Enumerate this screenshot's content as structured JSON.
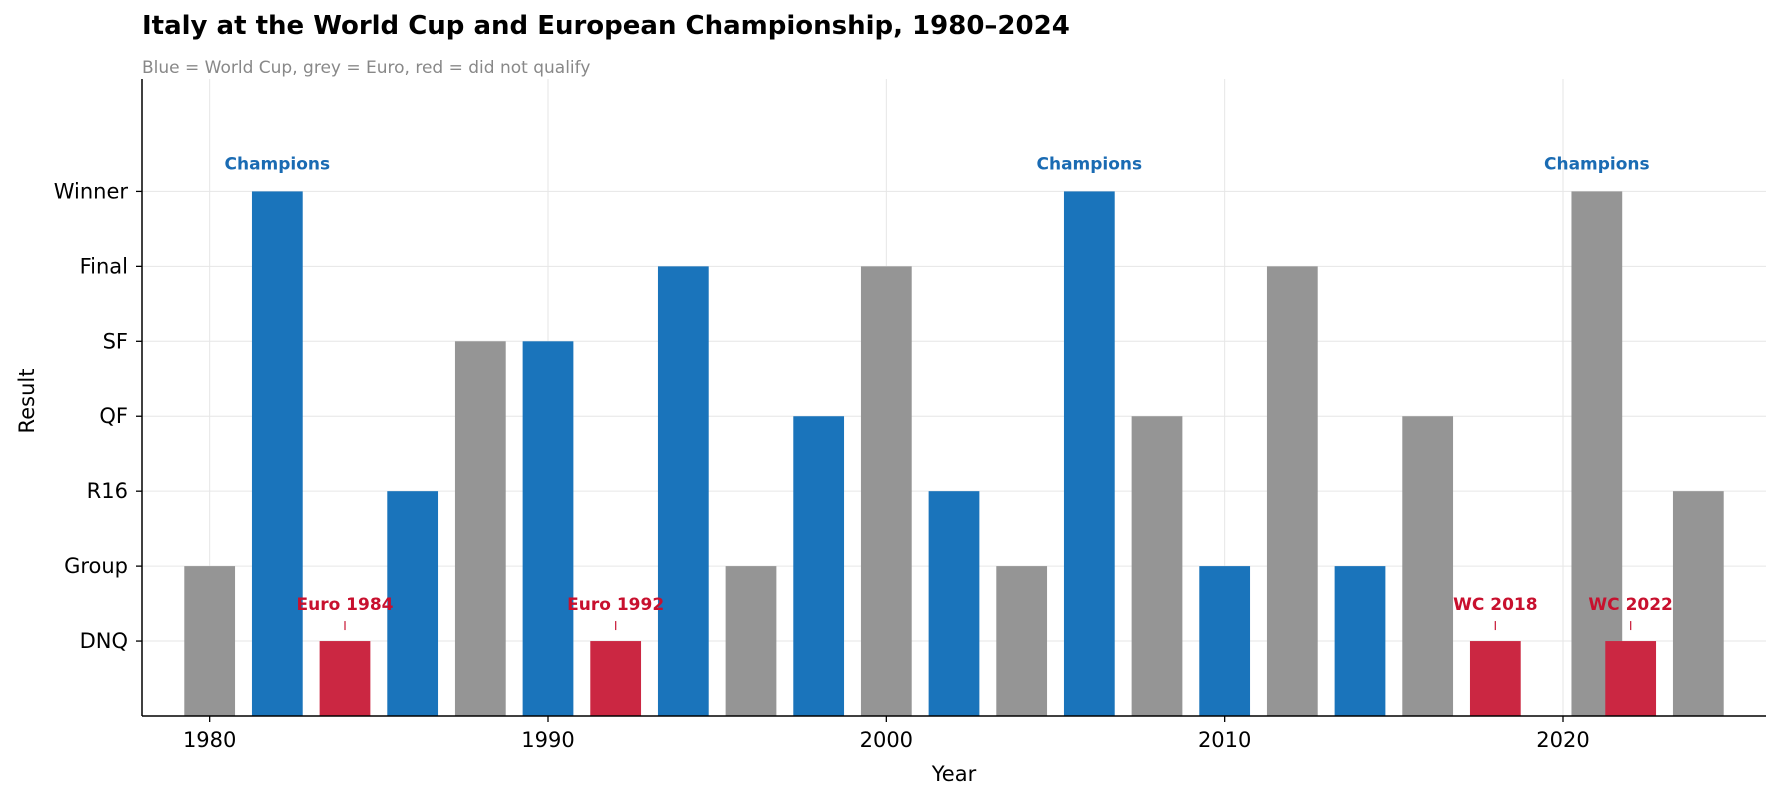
{
  "chart_data": {
    "type": "bar",
    "title": "Italy at the World Cup and European Championship, 1980–2024",
    "subtitle": "Blue = World Cup, grey = Euro, red = did not qualify",
    "xlabel": "Year",
    "ylabel": "Result",
    "xlim": [
      1978,
      2026
    ],
    "ylim": [
      -1,
      7.5
    ],
    "x_ticks": [
      1980,
      1990,
      2000,
      2010,
      2020
    ],
    "y_ticks": [
      {
        "value": 0,
        "label": "DNQ"
      },
      {
        "value": 1,
        "label": "Group"
      },
      {
        "value": 2,
        "label": "R16"
      },
      {
        "value": 3,
        "label": "QF"
      },
      {
        "value": 4,
        "label": "SF"
      },
      {
        "value": 5,
        "label": "Final"
      },
      {
        "value": 6,
        "label": "Winner"
      }
    ],
    "grid": true,
    "colors": {
      "world_cup": "#1a74bb",
      "euro": "#959595",
      "dnq": "#cb2742"
    },
    "series": [
      {
        "year": 1980,
        "tournament": "euro",
        "result": 1
      },
      {
        "year": 1982,
        "tournament": "world_cup",
        "result": 6
      },
      {
        "year": 1984,
        "tournament": "dnq",
        "result": 0
      },
      {
        "year": 1986,
        "tournament": "world_cup",
        "result": 2
      },
      {
        "year": 1988,
        "tournament": "euro",
        "result": 4
      },
      {
        "year": 1990,
        "tournament": "world_cup",
        "result": 4
      },
      {
        "year": 1992,
        "tournament": "dnq",
        "result": 0
      },
      {
        "year": 1994,
        "tournament": "world_cup",
        "result": 5
      },
      {
        "year": 1996,
        "tournament": "euro",
        "result": 1
      },
      {
        "year": 1998,
        "tournament": "world_cup",
        "result": 3
      },
      {
        "year": 2000,
        "tournament": "euro",
        "result": 5
      },
      {
        "year": 2002,
        "tournament": "world_cup",
        "result": 2
      },
      {
        "year": 2004,
        "tournament": "euro",
        "result": 1
      },
      {
        "year": 2006,
        "tournament": "world_cup",
        "result": 6
      },
      {
        "year": 2008,
        "tournament": "euro",
        "result": 3
      },
      {
        "year": 2010,
        "tournament": "world_cup",
        "result": 1
      },
      {
        "year": 2012,
        "tournament": "euro",
        "result": 5
      },
      {
        "year": 2014,
        "tournament": "world_cup",
        "result": 1
      },
      {
        "year": 2016,
        "tournament": "euro",
        "result": 3
      },
      {
        "year": 2018,
        "tournament": "dnq",
        "result": 0
      },
      {
        "year": 2021,
        "tournament": "euro",
        "result": 6
      },
      {
        "year": 2022,
        "tournament": "dnq",
        "result": 0
      },
      {
        "year": 2024,
        "tournament": "euro",
        "result": 2
      }
    ],
    "annotations": [
      {
        "year": 1982,
        "text": "Champions",
        "kind": "champion"
      },
      {
        "year": 2006,
        "text": "Champions",
        "kind": "champion"
      },
      {
        "year": 2021,
        "text": "Champions",
        "kind": "champion"
      },
      {
        "year": 1984,
        "text": "Euro 1984",
        "kind": "dnq"
      },
      {
        "year": 1992,
        "text": "Euro 1992",
        "kind": "dnq"
      },
      {
        "year": 2018,
        "text": "WC 2018",
        "kind": "dnq"
      },
      {
        "year": 2022,
        "text": "WC 2022",
        "kind": "dnq"
      }
    ]
  }
}
